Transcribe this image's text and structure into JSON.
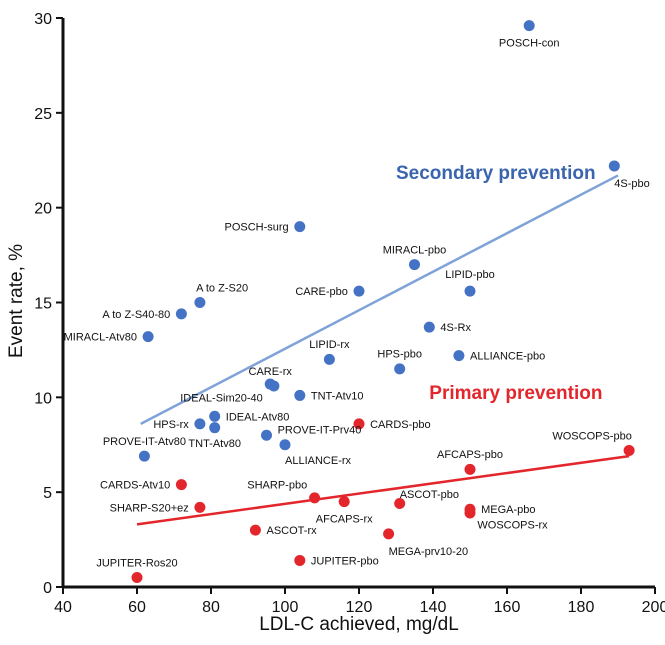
{
  "chart_data": {
    "type": "scatter",
    "xlabel": "LDL-C achieved, mg/dL",
    "ylabel": "Event rate, %",
    "xlim": [
      40,
      200
    ],
    "ylim": [
      0,
      30
    ],
    "xticks": [
      40,
      60,
      80,
      100,
      120,
      140,
      160,
      180,
      200
    ],
    "yticks": [
      0,
      5,
      10,
      15,
      20,
      25,
      30
    ],
    "grid": false,
    "colors": {
      "secondary": "#4472c4",
      "primary": "#e3262b",
      "secondary_line": "#7fa3d8",
      "primary_line": "#e3262b"
    },
    "annotations": [
      {
        "text": "Secondary prevention",
        "color": "#3a64ad",
        "x": 130,
        "y": 21.5
      },
      {
        "text": "Primary prevention",
        "color": "#e3262b",
        "x": 139,
        "y": 9.9
      }
    ],
    "series": [
      {
        "group": "secondary",
        "points": [
          {
            "label": "POSCH-con",
            "x": 166,
            "y": 29.6,
            "lx": 166,
            "ly": 28.7,
            "anchor": "middle"
          },
          {
            "label": "4S-pbo",
            "x": 189,
            "y": 22.2,
            "lx": 189,
            "ly": 21.3,
            "anchor": "start"
          },
          {
            "label": "POSCH-surg",
            "x": 104,
            "y": 19.0,
            "lx": 101,
            "ly": 19.0,
            "anchor": "end"
          },
          {
            "label": "MIRACL-pbo",
            "x": 135,
            "y": 17.0,
            "lx": 135,
            "ly": 17.8,
            "anchor": "middle"
          },
          {
            "label": "CARE-pbo",
            "x": 120,
            "y": 15.6,
            "lx": 117,
            "ly": 15.6,
            "anchor": "end"
          },
          {
            "label": "LIPID-pbo",
            "x": 150,
            "y": 15.6,
            "lx": 150,
            "ly": 16.5,
            "anchor": "middle"
          },
          {
            "label": "A to Z-S20",
            "x": 77,
            "y": 15.0,
            "lx": 83,
            "ly": 15.8,
            "anchor": "middle"
          },
          {
            "label": "A to Z-S40-80",
            "x": 72,
            "y": 14.4,
            "lx": 69,
            "ly": 14.4,
            "anchor": "end"
          },
          {
            "label": "MIRACL-Atv80",
            "x": 63,
            "y": 13.2,
            "lx": 60,
            "ly": 13.2,
            "anchor": "end"
          },
          {
            "label": "4S-Rx",
            "x": 139,
            "y": 13.7,
            "lx": 142,
            "ly": 13.7,
            "anchor": "start"
          },
          {
            "label": "LIPID-rx",
            "x": 112,
            "y": 12.0,
            "lx": 112,
            "ly": 12.8,
            "anchor": "middle"
          },
          {
            "label": "ALLIANCE-pbo",
            "x": 147,
            "y": 12.2,
            "lx": 150,
            "ly": 12.2,
            "anchor": "start"
          },
          {
            "label": "HPS-pbo",
            "x": 131,
            "y": 11.5,
            "lx": 131,
            "ly": 12.3,
            "anchor": "middle"
          },
          {
            "label": "CARE-rx",
            "x": 96,
            "y": 10.7,
            "lx": 96,
            "ly": 11.4,
            "anchor": "middle"
          },
          {
            "label": "IDEAL-Sim20-40",
            "x": 97,
            "y": 10.6,
            "lx": 94,
            "ly": 10.0,
            "anchor": "end"
          },
          {
            "label": "TNT-Atv10",
            "x": 104,
            "y": 10.1,
            "lx": 107,
            "ly": 10.1,
            "anchor": "start"
          },
          {
            "label": "IDEAL-Atv80",
            "x": 81,
            "y": 9.0,
            "lx": 84,
            "ly": 9.0,
            "anchor": "start"
          },
          {
            "label": "HPS-rx",
            "x": 77,
            "y": 8.6,
            "lx": 74,
            "ly": 8.6,
            "anchor": "end"
          },
          {
            "label": "TNT-Atv80",
            "x": 81,
            "y": 8.4,
            "lx": 81,
            "ly": 7.6,
            "anchor": "middle"
          },
          {
            "label": "PROVE-IT-Prv40",
            "x": 95,
            "y": 8.0,
            "lx": 98,
            "ly": 8.3,
            "anchor": "start"
          },
          {
            "label": "ALLIANCE-rx",
            "x": 100,
            "y": 7.5,
            "lx": 100,
            "ly": 6.7,
            "anchor": "start"
          },
          {
            "label": "PROVE-IT-Atv80",
            "x": 62,
            "y": 6.9,
            "lx": 62,
            "ly": 7.7,
            "anchor": "middle"
          }
        ]
      },
      {
        "group": "primary",
        "points": [
          {
            "label": "WOSCOPS-pbo",
            "x": 193,
            "y": 7.2,
            "lx": 183,
            "ly": 8.0,
            "anchor": "middle"
          },
          {
            "label": "CARDS-pbo",
            "x": 120,
            "y": 8.6,
            "lx": 123,
            "ly": 8.6,
            "anchor": "start"
          },
          {
            "label": "AFCAPS-pbo",
            "x": 150,
            "y": 6.2,
            "lx": 150,
            "ly": 7.0,
            "anchor": "middle"
          },
          {
            "label": "CARDS-Atv10",
            "x": 72,
            "y": 5.4,
            "lx": 69,
            "ly": 5.4,
            "anchor": "end"
          },
          {
            "label": "SHARP-pbo",
            "x": 108,
            "y": 4.7,
            "lx": 106,
            "ly": 5.4,
            "anchor": "end"
          },
          {
            "label": "ASCOT-pbo",
            "x": 131,
            "y": 4.4,
            "lx": 131,
            "ly": 4.9,
            "anchor": "start"
          },
          {
            "label": "AFCAPS-rx",
            "x": 116,
            "y": 4.5,
            "lx": 116,
            "ly": 3.6,
            "anchor": "middle"
          },
          {
            "label": "SHARP-S20+ez",
            "x": 77,
            "y": 4.2,
            "lx": 74,
            "ly": 4.2,
            "anchor": "end"
          },
          {
            "label": "MEGA-pbo",
            "x": 150,
            "y": 4.1,
            "lx": 153,
            "ly": 4.1,
            "anchor": "start"
          },
          {
            "label": "WOSCOPS-rx",
            "x": 150,
            "y": 3.9,
            "lx": 152,
            "ly": 3.3,
            "anchor": "start"
          },
          {
            "label": "ASCOT-rx",
            "x": 92,
            "y": 3.0,
            "lx": 95,
            "ly": 3.0,
            "anchor": "start"
          },
          {
            "label": "MEGA-prv10-20",
            "x": 128,
            "y": 2.8,
            "lx": 128,
            "ly": 1.9,
            "anchor": "start"
          },
          {
            "label": "JUPITER-pbo",
            "x": 104,
            "y": 1.4,
            "lx": 107,
            "ly": 1.4,
            "anchor": "start"
          },
          {
            "label": "JUPITER-Ros20",
            "x": 60,
            "y": 0.5,
            "lx": 60,
            "ly": 1.3,
            "anchor": "middle"
          }
        ]
      }
    ],
    "trendlines": [
      {
        "group": "secondary",
        "from": [
          61,
          8.6
        ],
        "to": [
          190,
          21.7
        ]
      },
      {
        "group": "primary",
        "from": [
          60,
          3.3
        ],
        "to": [
          193,
          6.9
        ]
      }
    ]
  }
}
